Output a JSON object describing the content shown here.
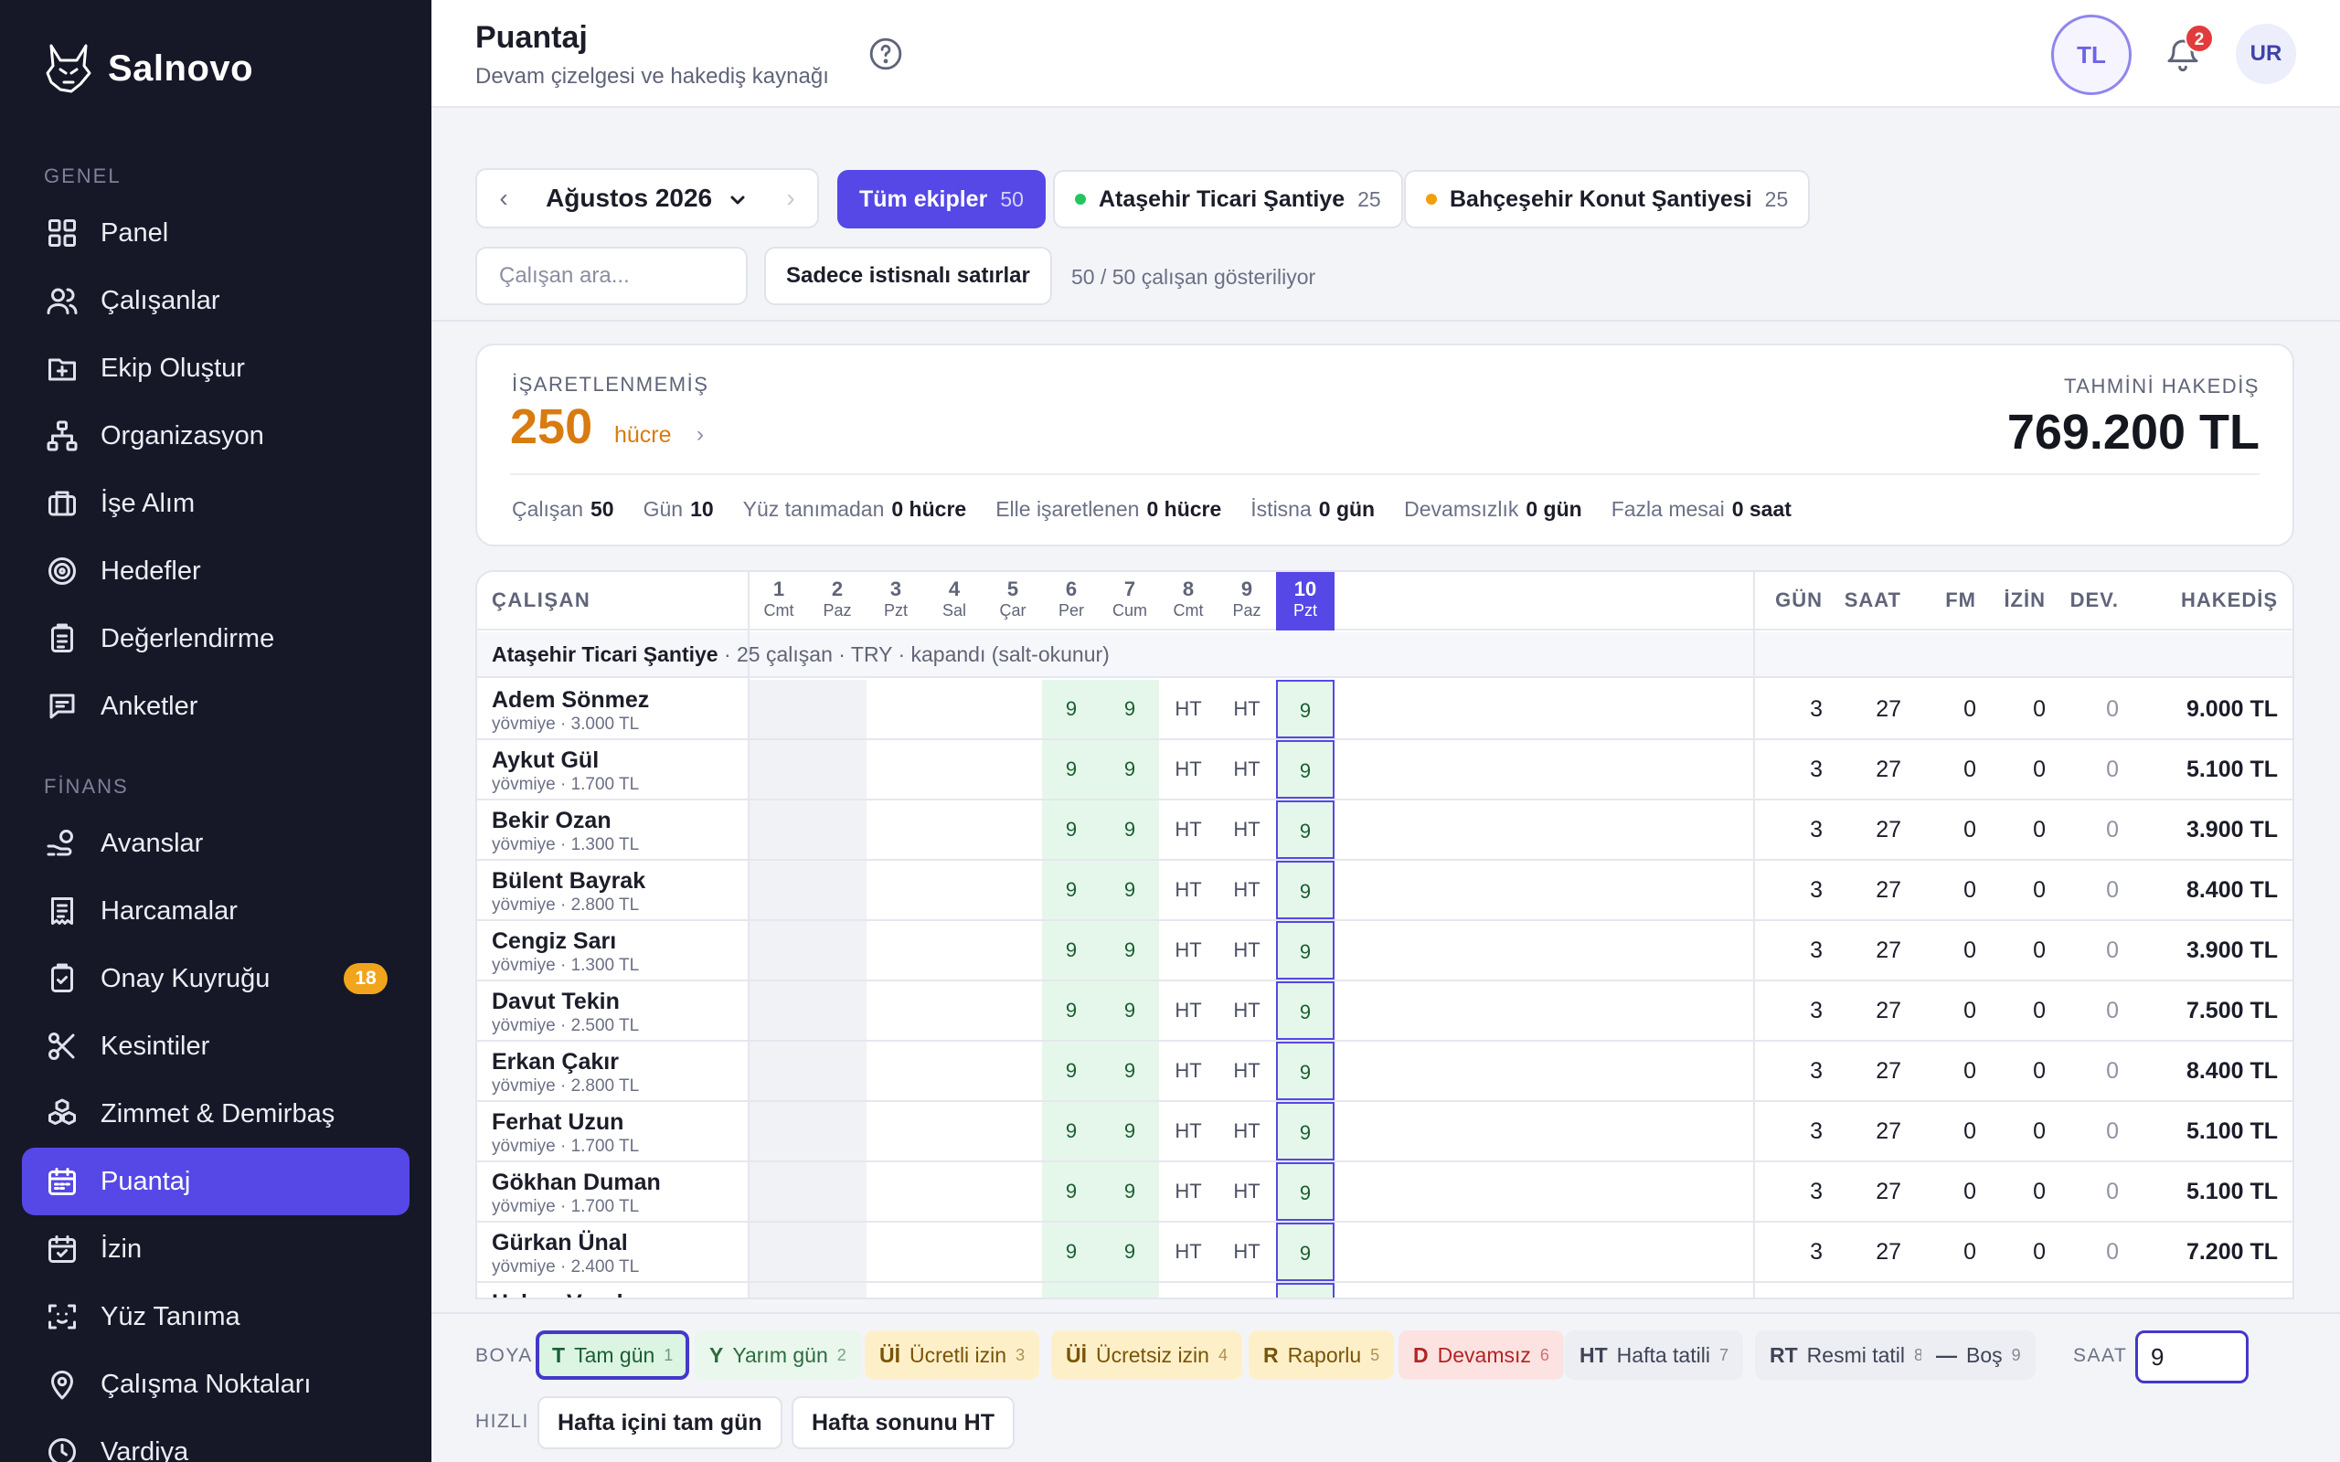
{
  "brand": {
    "name": "Salnovo"
  },
  "sidebar": {
    "sections": [
      {
        "label": "GENEL"
      },
      {
        "label": "FİNANS"
      }
    ],
    "items": [
      {
        "label": "Panel",
        "icon": "grid-icon"
      },
      {
        "label": "Çalışanlar",
        "icon": "users-icon"
      },
      {
        "label": "Ekip Oluştur",
        "icon": "folder-plus-icon"
      },
      {
        "label": "Organizasyon",
        "icon": "org-chart-icon"
      },
      {
        "label": "İşe Alım",
        "icon": "briefcase-icon"
      },
      {
        "label": "Hedefler",
        "icon": "target-icon"
      },
      {
        "label": "Değerlendirme",
        "icon": "clipboard-icon"
      },
      {
        "label": "Anketler",
        "icon": "message-icon"
      },
      {
        "label": "Avanslar",
        "icon": "hand-coin-icon"
      },
      {
        "label": "Harcamalar",
        "icon": "receipt-icon"
      },
      {
        "label": "Onay Kuyruğu",
        "icon": "clipboard-check-icon",
        "badge": "18"
      },
      {
        "label": "Kesintiler",
        "icon": "scissors-icon"
      },
      {
        "label": "Zimmet & Demirbaş",
        "icon": "boxes-icon"
      },
      {
        "label": "Puantaj",
        "icon": "calendar-icon",
        "active": true
      },
      {
        "label": "İzin",
        "icon": "calendar-check-icon"
      },
      {
        "label": "Yüz Tanıma",
        "icon": "face-scan-icon"
      },
      {
        "label": "Çalışma Noktaları",
        "icon": "map-pin-icon"
      },
      {
        "label": "Vardiya",
        "icon": "clock-icon"
      }
    ]
  },
  "header": {
    "title": "Puantaj",
    "subtitle": "Devam çizelgesi ve hakediş kaynağı",
    "currency": "TL",
    "notifications": "2",
    "user_initials": "UR"
  },
  "toolbar": {
    "month": "Ağustos 2026",
    "chips": [
      {
        "label": "Tüm ekipler",
        "count": "50",
        "active": true
      },
      {
        "label": "Ataşehir Ticari Şantiye",
        "count": "25",
        "dot": "#22c55e"
      },
      {
        "label": "Bahçeşehir Konut Şantiyesi",
        "count": "25",
        "dot": "#f59e0b"
      }
    ],
    "search_placeholder": "Çalışan ara...",
    "exceptions_button": "Sadece istisnalı satırlar",
    "showing": "50 / 50 çalışan gösteriliyor"
  },
  "summary": {
    "unmarked_label": "İŞARETLENMEMİŞ",
    "unmarked_value": "250",
    "unmarked_unit": "hücre",
    "unmarked_chevron": "›",
    "estimate_label": "TAHMİNİ HAKEDİŞ",
    "estimate_value": "769.200 TL",
    "stats": [
      {
        "label": "Çalışan",
        "value": "50"
      },
      {
        "label": "Gün",
        "value": "10"
      },
      {
        "label": "Yüz tanımadan",
        "value": "0 hücre"
      },
      {
        "label": "Elle işaretlenen",
        "value": "0 hücre"
      },
      {
        "label": "İstisna",
        "value": "0 gün"
      },
      {
        "label": "Devamsızlık",
        "value": "0 gün"
      },
      {
        "label": "Fazla mesai",
        "value": "0 saat"
      }
    ]
  },
  "table": {
    "employee_header": "ÇALIŞAN",
    "days": [
      {
        "n": "1",
        "w": "Cmt"
      },
      {
        "n": "2",
        "w": "Paz"
      },
      {
        "n": "3",
        "w": "Pzt"
      },
      {
        "n": "4",
        "w": "Sal"
      },
      {
        "n": "5",
        "w": "Çar"
      },
      {
        "n": "6",
        "w": "Per"
      },
      {
        "n": "7",
        "w": "Cum"
      },
      {
        "n": "8",
        "w": "Cmt"
      },
      {
        "n": "9",
        "w": "Paz"
      },
      {
        "n": "10",
        "w": "Pzt"
      }
    ],
    "total_headers": [
      "GÜN",
      "SAAT",
      "FM",
      "İZİN",
      "DEV.",
      "HAKEDİŞ"
    ],
    "group": {
      "name": "Ataşehir Ticari Şantiye",
      "info": " · 25 çalışan · TRY · kapandı (salt-okunur)"
    },
    "cells": [
      "",
      "",
      "",
      "",
      "",
      "9",
      "9",
      "HT",
      "HT",
      "9"
    ],
    "rows": [
      {
        "name": "Adem Sönmez",
        "wage": "yövmiye · 3.000 TL",
        "gun": "3",
        "saat": "27",
        "fm": "0",
        "izin": "0",
        "dev": "0",
        "pay": "9.000 TL"
      },
      {
        "name": "Aykut Gül",
        "wage": "yövmiye · 1.700 TL",
        "gun": "3",
        "saat": "27",
        "fm": "0",
        "izin": "0",
        "dev": "0",
        "pay": "5.100 TL"
      },
      {
        "name": "Bekir Ozan",
        "wage": "yövmiye · 1.300 TL",
        "gun": "3",
        "saat": "27",
        "fm": "0",
        "izin": "0",
        "dev": "0",
        "pay": "3.900 TL"
      },
      {
        "name": "Bülent Bayrak",
        "wage": "yövmiye · 2.800 TL",
        "gun": "3",
        "saat": "27",
        "fm": "0",
        "izin": "0",
        "dev": "0",
        "pay": "8.400 TL"
      },
      {
        "name": "Cengiz Sarı",
        "wage": "yövmiye · 1.300 TL",
        "gun": "3",
        "saat": "27",
        "fm": "0",
        "izin": "0",
        "dev": "0",
        "pay": "3.900 TL"
      },
      {
        "name": "Davut Tekin",
        "wage": "yövmiye · 2.500 TL",
        "gun": "3",
        "saat": "27",
        "fm": "0",
        "izin": "0",
        "dev": "0",
        "pay": "7.500 TL"
      },
      {
        "name": "Erkan Çakır",
        "wage": "yövmiye · 2.800 TL",
        "gun": "3",
        "saat": "27",
        "fm": "0",
        "izin": "0",
        "dev": "0",
        "pay": "8.400 TL"
      },
      {
        "name": "Ferhat Uzun",
        "wage": "yövmiye · 1.700 TL",
        "gun": "3",
        "saat": "27",
        "fm": "0",
        "izin": "0",
        "dev": "0",
        "pay": "5.100 TL"
      },
      {
        "name": "Gökhan Duman",
        "wage": "yövmiye · 1.700 TL",
        "gun": "3",
        "saat": "27",
        "fm": "0",
        "izin": "0",
        "dev": "0",
        "pay": "5.100 TL"
      },
      {
        "name": "Gürkan Ünal",
        "wage": "yövmiye · 2.400 TL",
        "gun": "3",
        "saat": "27",
        "fm": "0",
        "izin": "0",
        "dev": "0",
        "pay": "7.200 TL"
      },
      {
        "name": "Hakan Vural",
        "wage": "",
        "gun": "",
        "saat": "",
        "fm": "",
        "izin": "",
        "dev": "",
        "pay": ""
      }
    ]
  },
  "paint": {
    "label": "BOYA",
    "options": [
      {
        "key": "T",
        "label": "Tam gün",
        "num": "1",
        "bg": "#dcf5e3",
        "fg": "#1b5e32",
        "selected": true
      },
      {
        "key": "Y",
        "label": "Yarım gün",
        "num": "2",
        "bg": "#e9f7ec",
        "fg": "#2c6b3e"
      },
      {
        "key": "Üİ",
        "label": "Ücretli izin",
        "num": "3",
        "bg": "#fdf0c9",
        "fg": "#7a5306"
      },
      {
        "key": "Üİ",
        "label": "Ücretsiz izin",
        "num": "4",
        "bg": "#fdf0c9",
        "fg": "#7a5306"
      },
      {
        "key": "R",
        "label": "Raporlu",
        "num": "5",
        "bg": "#fdf0c9",
        "fg": "#7a5306"
      },
      {
        "key": "D",
        "label": "Devamsız",
        "num": "6",
        "bg": "#fde2e2",
        "fg": "#b42323"
      },
      {
        "key": "HT",
        "label": "Hafta tatili",
        "num": "7",
        "bg": "#eceef3",
        "fg": "#3f4457"
      },
      {
        "key": "RT",
        "label": "Resmi tatil",
        "num": "8",
        "bg": "#eceef3",
        "fg": "#3f4457"
      },
      {
        "key": "—",
        "label": "Boş",
        "num": "9",
        "bg": "#eceef3",
        "fg": "#3f4457"
      }
    ],
    "hours_label": "SAAT",
    "hours_value": "9",
    "quick_label": "HIZLI",
    "quick_buttons": [
      "Hafta içini tam gün",
      "Hafta sonunu HT"
    ]
  }
}
